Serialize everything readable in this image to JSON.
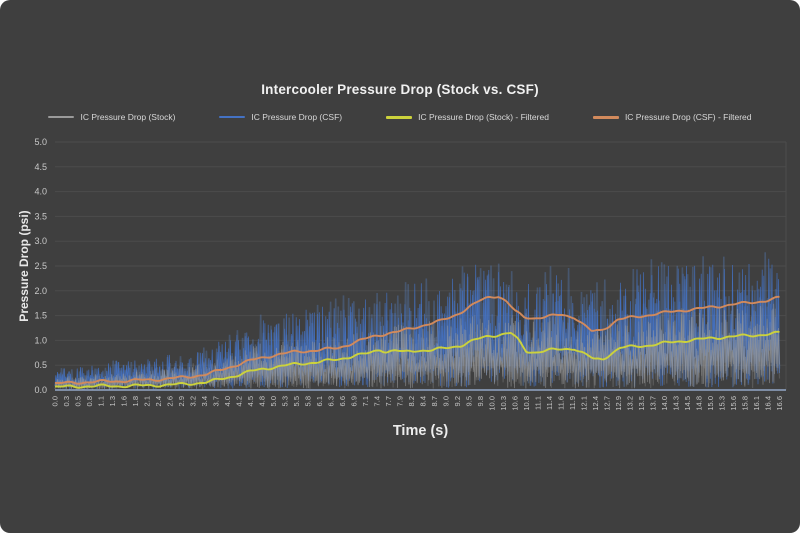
{
  "window": {
    "background_color": "#3f3f3f"
  },
  "chart_data": {
    "type": "line",
    "title": "Intercooler Pressure Drop (Stock vs. CSF)",
    "xlabel": "Time (s)",
    "ylabel": "Pressure Drop (psi)",
    "ylim": [
      0,
      5
    ],
    "xlim": [
      0,
      16.75
    ],
    "grid": "horizontal",
    "legend_position": "top",
    "gridline_color": "#4c4c4c",
    "axis_line_color": "#a3bce2",
    "tick_label_color": "#c9c9c9",
    "y_ticks": [
      "0.0",
      "0.5",
      "1.0",
      "1.5",
      "2.0",
      "2.5",
      "3.0",
      "3.5",
      "4.0",
      "4.5",
      "5.0"
    ],
    "x_tick_labels": [
      "0.0",
      "0.3",
      "0.5",
      "0.8",
      "1.1",
      "1.3",
      "1.6",
      "1.8",
      "2.1",
      "2.4",
      "2.6",
      "2.9",
      "3.2",
      "3.4",
      "3.7",
      "4.0",
      "4.2",
      "4.5",
      "4.8",
      "5.0",
      "5.3",
      "5.5",
      "5.8",
      "6.1",
      "6.3",
      "6.6",
      "6.9",
      "7.1",
      "7.4",
      "7.7",
      "7.9",
      "8.2",
      "8.4",
      "8.7",
      "9.0",
      "9.2",
      "9.5",
      "9.8",
      "10.0",
      "10.3",
      "10.6",
      "10.8",
      "11.1",
      "11.4",
      "11.6",
      "11.9",
      "12.1",
      "12.4",
      "12.7",
      "12.9",
      "13.2",
      "13.5",
      "13.7",
      "14.0",
      "14.3",
      "14.5",
      "14.8",
      "15.0",
      "15.3",
      "15.6",
      "15.8",
      "16.1",
      "16.4",
      "16.6"
    ],
    "x_max_label_value": 16.6,
    "series": [
      {
        "name": "IC Pressure Drop (Stock)",
        "color": "#9a9a9a",
        "style": "noisy",
        "envelope": [
          [
            0,
            0.28
          ],
          [
            0.5,
            0.3
          ],
          [
            1,
            0.33
          ],
          [
            1.5,
            0.36
          ],
          [
            2,
            0.4
          ],
          [
            2.5,
            0.45
          ],
          [
            3,
            0.5
          ],
          [
            3.5,
            0.58
          ],
          [
            4,
            0.7
          ],
          [
            4.5,
            0.88
          ],
          [
            5,
            0.95
          ],
          [
            5.5,
            1.0
          ],
          [
            6,
            1.05
          ],
          [
            6.5,
            1.1
          ],
          [
            7,
            1.2
          ],
          [
            7.5,
            1.28
          ],
          [
            8,
            1.35
          ],
          [
            8.5,
            1.4
          ],
          [
            9,
            1.45
          ],
          [
            9.5,
            1.55
          ],
          [
            9.8,
            1.6
          ],
          [
            10.1,
            1.55
          ],
          [
            10.5,
            1.48
          ],
          [
            11,
            1.5
          ],
          [
            11.5,
            1.55
          ],
          [
            12,
            1.5
          ],
          [
            12.5,
            1.3
          ],
          [
            13,
            1.5
          ],
          [
            13.5,
            1.58
          ],
          [
            14,
            1.6
          ],
          [
            14.5,
            1.65
          ],
          [
            15,
            1.68
          ],
          [
            15.5,
            1.7
          ],
          [
            16,
            1.74
          ],
          [
            16.6,
            1.8
          ]
        ]
      },
      {
        "name": "IC Pressure Drop (CSF)",
        "color": "#4472c4",
        "glow_color": "#5b8bd6",
        "style": "noisy",
        "envelope": [
          [
            0,
            0.45
          ],
          [
            0.5,
            0.5
          ],
          [
            1,
            0.55
          ],
          [
            1.5,
            0.6
          ],
          [
            2,
            0.65
          ],
          [
            2.5,
            0.7
          ],
          [
            3,
            0.75
          ],
          [
            3.5,
            0.85
          ],
          [
            4,
            1.1
          ],
          [
            4.5,
            1.4
          ],
          [
            5,
            1.5
          ],
          [
            5.5,
            1.6
          ],
          [
            6,
            1.7
          ],
          [
            6.5,
            1.78
          ],
          [
            7,
            1.9
          ],
          [
            7.5,
            2.0
          ],
          [
            8,
            2.1
          ],
          [
            8.5,
            2.2
          ],
          [
            9,
            2.3
          ],
          [
            9.5,
            2.5
          ],
          [
            9.8,
            2.62
          ],
          [
            10.1,
            2.45
          ],
          [
            10.5,
            2.25
          ],
          [
            11,
            2.3
          ],
          [
            11.5,
            2.4
          ],
          [
            12,
            2.3
          ],
          [
            12.5,
            2.05
          ],
          [
            13,
            2.4
          ],
          [
            13.5,
            2.5
          ],
          [
            14,
            2.5
          ],
          [
            14.5,
            2.55
          ],
          [
            15,
            2.6
          ],
          [
            15.5,
            2.6
          ],
          [
            16,
            2.65
          ],
          [
            16.6,
            2.7
          ]
        ]
      },
      {
        "name": "IC Pressure Drop (Stock) - Filtered",
        "color": "#ccd23c",
        "style": "smooth",
        "points": [
          [
            0,
            0.06
          ],
          [
            0.5,
            0.07
          ],
          [
            1,
            0.08
          ],
          [
            1.5,
            0.08
          ],
          [
            2,
            0.09
          ],
          [
            2.5,
            0.1
          ],
          [
            3,
            0.12
          ],
          [
            3.5,
            0.16
          ],
          [
            4,
            0.26
          ],
          [
            4.5,
            0.38
          ],
          [
            5,
            0.46
          ],
          [
            5.5,
            0.52
          ],
          [
            6,
            0.56
          ],
          [
            6.5,
            0.62
          ],
          [
            6.9,
            0.7
          ],
          [
            7.2,
            0.74
          ],
          [
            7.45,
            0.82
          ],
          [
            7.6,
            0.77
          ],
          [
            7.8,
            0.8
          ],
          [
            8,
            0.76
          ],
          [
            8.3,
            0.8
          ],
          [
            8.6,
            0.8
          ],
          [
            9,
            0.85
          ],
          [
            9.3,
            0.9
          ],
          [
            9.6,
            1.0
          ],
          [
            9.9,
            1.08
          ],
          [
            10.2,
            1.12
          ],
          [
            10.45,
            1.15
          ],
          [
            10.6,
            1.02
          ],
          [
            10.8,
            0.78
          ],
          [
            11,
            0.76
          ],
          [
            11.3,
            0.8
          ],
          [
            11.6,
            0.82
          ],
          [
            11.9,
            0.84
          ],
          [
            12.1,
            0.74
          ],
          [
            12.35,
            0.62
          ],
          [
            12.55,
            0.62
          ],
          [
            12.75,
            0.74
          ],
          [
            12.95,
            0.85
          ],
          [
            13.3,
            0.88
          ],
          [
            13.6,
            0.9
          ],
          [
            14,
            0.95
          ],
          [
            14.5,
            1.0
          ],
          [
            15,
            1.04
          ],
          [
            15.5,
            1.08
          ],
          [
            16,
            1.1
          ],
          [
            16.6,
            1.15
          ]
        ]
      },
      {
        "name": "IC Pressure Drop (CSF) - Filtered",
        "color": "#d28a5c",
        "style": "smooth",
        "points": [
          [
            0,
            0.13
          ],
          [
            0.5,
            0.15
          ],
          [
            1,
            0.17
          ],
          [
            1.5,
            0.18
          ],
          [
            2,
            0.2
          ],
          [
            2.5,
            0.22
          ],
          [
            3,
            0.26
          ],
          [
            3.5,
            0.32
          ],
          [
            4,
            0.46
          ],
          [
            4.5,
            0.6
          ],
          [
            5,
            0.7
          ],
          [
            5.5,
            0.77
          ],
          [
            6,
            0.8
          ],
          [
            6.5,
            0.85
          ],
          [
            7,
            1.0
          ],
          [
            7.3,
            1.08
          ],
          [
            7.6,
            1.14
          ],
          [
            7.9,
            1.18
          ],
          [
            8.2,
            1.25
          ],
          [
            8.5,
            1.32
          ],
          [
            8.8,
            1.38
          ],
          [
            9.1,
            1.48
          ],
          [
            9.4,
            1.62
          ],
          [
            9.7,
            1.78
          ],
          [
            9.95,
            1.88
          ],
          [
            10.15,
            1.9
          ],
          [
            10.35,
            1.78
          ],
          [
            10.55,
            1.58
          ],
          [
            10.75,
            1.47
          ],
          [
            11,
            1.45
          ],
          [
            11.3,
            1.48
          ],
          [
            11.6,
            1.52
          ],
          [
            11.9,
            1.47
          ],
          [
            12.1,
            1.32
          ],
          [
            12.3,
            1.18
          ],
          [
            12.5,
            1.2
          ],
          [
            12.7,
            1.3
          ],
          [
            12.9,
            1.42
          ],
          [
            13.2,
            1.46
          ],
          [
            13.5,
            1.5
          ],
          [
            13.9,
            1.55
          ],
          [
            14.3,
            1.6
          ],
          [
            14.7,
            1.63
          ],
          [
            15.1,
            1.68
          ],
          [
            15.5,
            1.72
          ],
          [
            15.9,
            1.76
          ],
          [
            16.3,
            1.8
          ],
          [
            16.6,
            1.86
          ]
        ]
      }
    ]
  }
}
